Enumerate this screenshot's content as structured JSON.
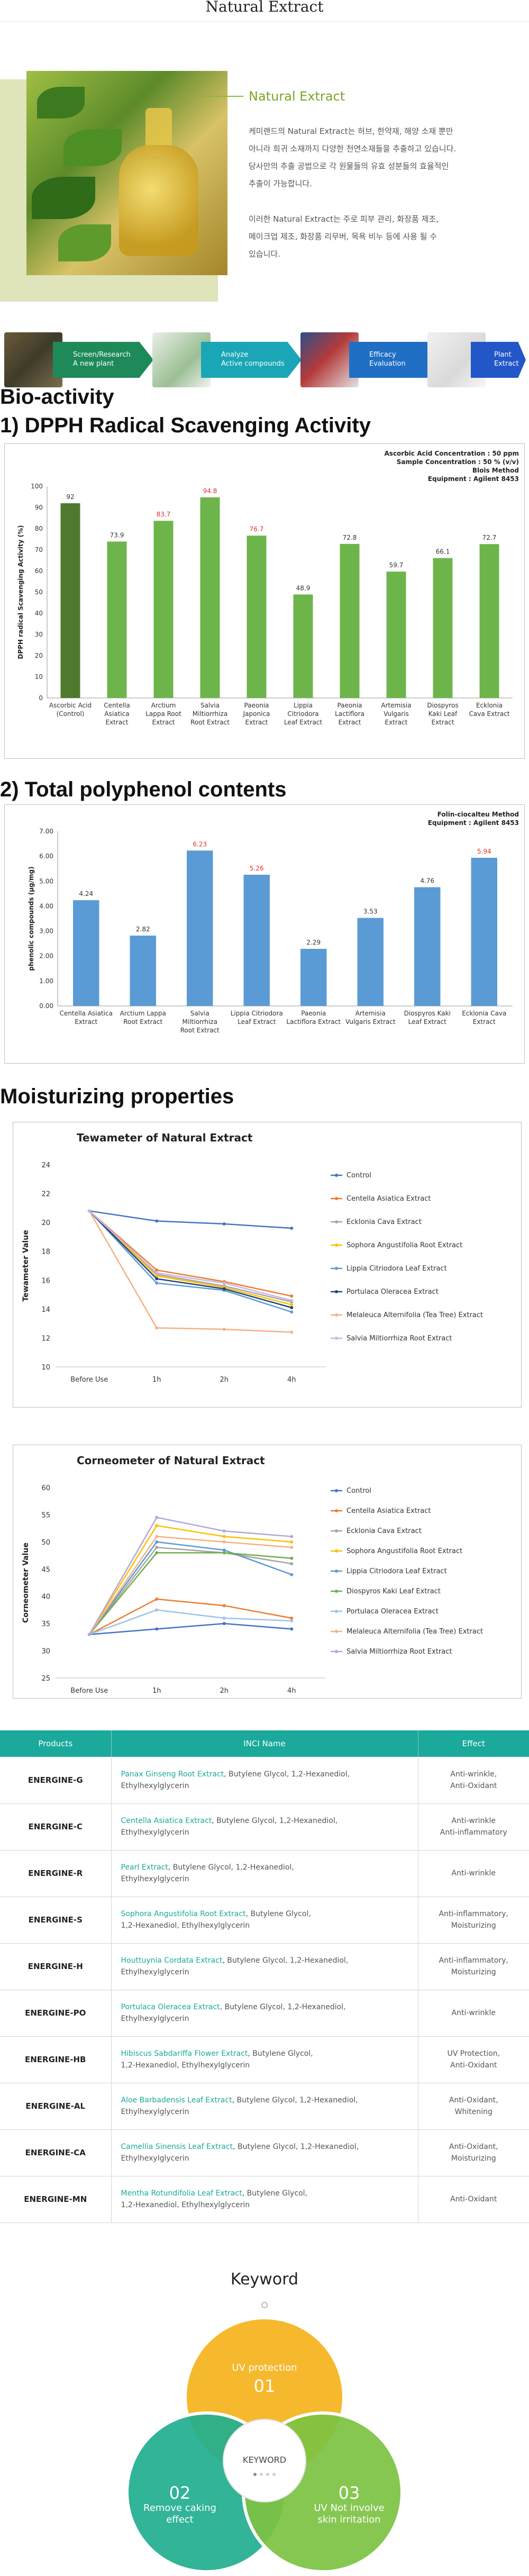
{
  "header": {
    "title": "Natural Extract"
  },
  "hero": {
    "heading": "Natural Extract",
    "paragraph1": [
      "케미랜드의 Natural Extract는 허브, 한약재, 해양 소재 뿐만",
      "아니라 희귀 소재까지 다양한 천연소재들을 추출하고 있습니다.",
      "당사만의 추출 공법으로 각 원물들의 유효 성분들의 효율적인",
      "추출이 가능합니다."
    ],
    "paragraph2": [
      "이러한 Natural Extract는 주로 피부 관리, 화장품 제조,",
      "메이크업 제조, 화장품 리무버, 목욕 비누 등에 사용 될 수",
      "있습니다."
    ]
  },
  "process": [
    {
      "line1": "Screen/Research",
      "line2": "A new plant",
      "color": "#1e8a5a"
    },
    {
      "line1": "Analyze",
      "line2": "Active compounds",
      "color": "#1aa6b6"
    },
    {
      "line1": "Efficacy",
      "line2": "Evaluation",
      "color": "#1f6fc4"
    },
    {
      "line1": "Plant",
      "line2": "Extract",
      "color": "#2357c8"
    }
  ],
  "bioactivity": {
    "heading": "Bio-activity",
    "dpph_heading": "1) DPPH Radical Scavenging Activity",
    "poly_heading": "2) Total polyphenol contents"
  },
  "moisturizing": {
    "heading": "Moisturizing properties"
  },
  "chart_data": [
    {
      "type": "bar",
      "notes": [
        "Ascorbic Acid Concentration : 50 ppm",
        "Sample Concentration : 50 % (v/v)",
        "Blois Method",
        "Equipment : Agilent 8453"
      ],
      "ylabel": "DPPH radical Scavenging Activity (%)",
      "ylim": [
        0,
        100
      ],
      "yticks": [
        0,
        10,
        20,
        30,
        40,
        50,
        60,
        70,
        80,
        90,
        100
      ],
      "categories": [
        [
          "Ascorbic Acid",
          "(Control)"
        ],
        [
          "Centella",
          "Asiatica",
          "Extract"
        ],
        [
          "Arctium",
          "Lappa Root",
          "Extract"
        ],
        [
          "Salvia",
          "Miltiorrhiza",
          "Root Extract"
        ],
        [
          "Paeonia",
          "Japonica",
          "Extract"
        ],
        [
          "Lippia",
          "Citriodora",
          "Leaf Extract"
        ],
        [
          "Paeonia",
          "Lactiflora",
          "Extract"
        ],
        [
          "Artemisia",
          "Vulgaris",
          "Extract"
        ],
        [
          "Diospyros",
          "Kaki Leaf",
          "Extract"
        ],
        [
          "Ecklonia",
          "Cava Extract"
        ]
      ],
      "values": [
        92,
        73.9,
        83.7,
        94.8,
        76.7,
        48.9,
        72.8,
        59.7,
        66.1,
        72.7
      ],
      "highlight": [
        false,
        false,
        true,
        true,
        true,
        false,
        false,
        false,
        false,
        false
      ],
      "colors": {
        "control": "#4f7a2e",
        "bar": "#6db54a",
        "label": "#333333",
        "label_highlight": "#e0322d"
      }
    },
    {
      "type": "bar",
      "notes": [
        "Folin-ciocalteu Method",
        "Equipment : Agilent 8453"
      ],
      "ylabel": "phenolic compounds (μg/mg)",
      "ylim": [
        0,
        7
      ],
      "yticks": [
        "0.00",
        "1.00",
        "2.00",
        "3.00",
        "4.00",
        "5.00",
        "6.00",
        "7.00"
      ],
      "categories": [
        [
          "Centella Asiatica",
          "Extract"
        ],
        [
          "Arctium Lappa",
          "Root Extract"
        ],
        [
          "Salvia",
          "Miltiorrhiza",
          "Root Extract"
        ],
        [
          "Lippia Citriodora",
          "Leaf Extract"
        ],
        [
          "Paeonia",
          "Lactiflora Extract"
        ],
        [
          "Artemisia",
          "Vulgaris Extract"
        ],
        [
          "Diospyros Kaki",
          "Leaf Extract"
        ],
        [
          "Ecklonia Cava",
          "Extract"
        ]
      ],
      "values": [
        4.24,
        2.82,
        6.23,
        5.26,
        2.29,
        3.53,
        4.76,
        5.94
      ],
      "value_labels": [
        "4.24",
        "2.82",
        "6.23",
        "5.26",
        "2.29",
        "3.53",
        "4.76",
        "5.94"
      ],
      "highlight": [
        false,
        false,
        true,
        true,
        false,
        false,
        false,
        true
      ],
      "colors": {
        "bar": "#5b9bd5",
        "label": "#333333",
        "label_highlight": "#e0322d"
      }
    },
    {
      "type": "line",
      "title": "Tewameter of Natural Extract",
      "ylabel": "Tewameter Value",
      "ylim": [
        10,
        24
      ],
      "yticks": [
        10,
        12,
        14,
        16,
        18,
        20,
        22,
        24
      ],
      "x": [
        "Before Use",
        "1h",
        "2h",
        "4h"
      ],
      "series": [
        {
          "name": "Control",
          "values": [
            20.8,
            20.1,
            19.9,
            19.6
          ],
          "color": "#4472c4"
        },
        {
          "name": "Centella Asiatica Extract",
          "values": [
            20.8,
            16.7,
            15.9,
            14.9
          ],
          "color": "#ed7d31"
        },
        {
          "name": "Ecklonia Cava Extract",
          "values": [
            20.8,
            16.4,
            15.6,
            14.5
          ],
          "color": "#a5a5a5"
        },
        {
          "name": "Sophora Angustifolia Root Extract",
          "values": [
            20.8,
            16.3,
            15.5,
            14.3
          ],
          "color": "#ffc000"
        },
        {
          "name": "Lippia Citriodora Leaf Extract",
          "values": [
            20.8,
            15.8,
            15.3,
            13.8
          ],
          "color": "#5b9bd5"
        },
        {
          "name": "Portulaca Oleracea Extract",
          "values": [
            20.8,
            16.1,
            15.4,
            14.1
          ],
          "color": "#264478"
        },
        {
          "name": "Melaleuca Alternifolia (Tea Tree) Extract",
          "values": [
            20.8,
            12.7,
            12.6,
            12.4
          ],
          "color": "#f4b183"
        },
        {
          "name": "Salvia Miltiorrhiza Root Extract",
          "values": [
            20.8,
            16.5,
            15.8,
            14.6
          ],
          "color": "#c9b5e8"
        }
      ]
    },
    {
      "type": "line",
      "title": "Corneometer of Natural Extract",
      "ylabel": "Corneometer Value",
      "ylim": [
        25,
        60
      ],
      "yticks": [
        25,
        30,
        35,
        40,
        45,
        50,
        55,
        60
      ],
      "x": [
        "Before Use",
        "1h",
        "2h",
        "4h"
      ],
      "series": [
        {
          "name": "Control",
          "values": [
            33,
            34,
            35,
            34
          ],
          "color": "#4472c4"
        },
        {
          "name": "Centella Asiatica Extract",
          "values": [
            33,
            39.5,
            38.3,
            36
          ],
          "color": "#ed7d31"
        },
        {
          "name": "Ecklonia Cava Extract",
          "values": [
            33,
            49,
            48,
            46
          ],
          "color": "#a5a5a5"
        },
        {
          "name": "Sophora Angustifolia Root Extract",
          "values": [
            33,
            53,
            51,
            50
          ],
          "color": "#ffc000"
        },
        {
          "name": "Lippia Citriodora Leaf Extract",
          "values": [
            33,
            50,
            48.5,
            44
          ],
          "color": "#5b9bd5"
        },
        {
          "name": "Diospyros Kaki Leaf Extract",
          "values": [
            33,
            48,
            48,
            47
          ],
          "color": "#70ad47"
        },
        {
          "name": "Portulaca Oleracea Extract",
          "values": [
            33,
            37.5,
            36,
            35.5
          ],
          "color": "#9dc3e6"
        },
        {
          "name": "Melaleuca Alternifolia (Tea Tree) Extract",
          "values": [
            33,
            51,
            50,
            49
          ],
          "color": "#f4b183"
        },
        {
          "name": "Salvia Miltiorrhiza Root Extract",
          "values": [
            33,
            54.5,
            52,
            51
          ],
          "color": "#b4a7d6"
        }
      ]
    }
  ],
  "table": {
    "headers": [
      "Products",
      "INCI Name",
      "Effect"
    ],
    "rows": [
      {
        "product": "ENERGINE-G",
        "inci_hl": "Panax Ginseng Root Extract",
        "inci_rest": ", Butylene Glycol, 1,2-Hexanediol,",
        "inci_line2": "Ethylhexylglycerin",
        "effect1": "Anti-wrinkle,",
        "effect2": "Anti-Oxidant"
      },
      {
        "product": "ENERGINE-C",
        "inci_hl": "Centella Asiatica Extract",
        "inci_rest": ", Butylene Glycol, 1,2-Hexanediol,",
        "inci_line2": "Ethylhexylglycerin",
        "effect1": "Anti-wrinkle",
        "effect2": "Anti-inflammatory"
      },
      {
        "product": "ENERGINE-R",
        "inci_hl": "Pearl Extract",
        "inci_rest": ", Butylene Glycol, 1,2-Hexanediol,",
        "inci_line2": "Ethylhexylglycerin",
        "effect1": "Anti-wrinkle",
        "effect2": ""
      },
      {
        "product": "ENERGINE-S",
        "inci_hl": "Sophora Angustifolia Root Extract",
        "inci_rest": ", Butylene Glycol,",
        "inci_line2": "1,2-Hexanediol, Ethylhexylglycerin",
        "effect1": "Anti-inflammatory,",
        "effect2": "Moisturizing"
      },
      {
        "product": "ENERGINE-H",
        "inci_hl": "Houttuynia Cordata Extract",
        "inci_rest": ", Butylene Glycol, 1,2-Hexanediol,",
        "inci_line2": "Ethylhexylglycerin",
        "effect1": "Anti-inflammatory,",
        "effect2": "Moisturizing"
      },
      {
        "product": "ENERGINE-PO",
        "inci_hl": "Portulaca Oleracea Extract",
        "inci_rest": ", Butylene Glycol, 1,2-Hexanediol,",
        "inci_line2": "Ethylhexylglycerin",
        "effect1": "Anti-wrinkle",
        "effect2": ""
      },
      {
        "product": "ENERGINE-HB",
        "inci_hl": "Hibiscus Sabdariffa Flower Extract",
        "inci_rest": ", Butylene Glycol,",
        "inci_line2": "1,2-Hexanediol, Ethylhexylglycerin",
        "effect1": "UV Protection,",
        "effect2": "Anti-Oxidant"
      },
      {
        "product": "ENERGINE-AL",
        "inci_hl": "Aloe Barbadensis Leaf Extract",
        "inci_rest": ", Butylene Glycol, 1,2-Hexanediol,",
        "inci_line2": "Ethylhexylglycerin",
        "effect1": "Anti-Oxidant,",
        "effect2": "Whitening"
      },
      {
        "product": "ENERGINE-CA",
        "inci_hl": "Camellia Sinensis Leaf Extract",
        "inci_rest": ", Butylene Glycol, 1,2-Hexanediol,",
        "inci_line2": "Ethylhexylglycerin",
        "effect1": "Anti-Oxidant,",
        "effect2": "Moisturizing"
      },
      {
        "product": "ENERGINE-MN",
        "inci_hl": "Mentha Rotundifolia Leaf Extract",
        "inci_rest": ", Butylene Glycol,",
        "inci_line2": "1,2-Hexanediol, Ethylhexylglycerin",
        "effect1": "Anti-Oxidant",
        "effect2": ""
      }
    ]
  },
  "keyword": {
    "title": "Keyword",
    "center": "KEYWORD",
    "items": [
      {
        "num": "01",
        "line1": "UV protection",
        "line2": "",
        "color": "#f5b31c"
      },
      {
        "num": "02",
        "line1": "Remove caking",
        "line2": "effect",
        "color": "#1fae8e"
      },
      {
        "num": "03",
        "line1": "UV Not involve",
        "line2": "skin irritation",
        "color": "#7cc242"
      }
    ]
  }
}
